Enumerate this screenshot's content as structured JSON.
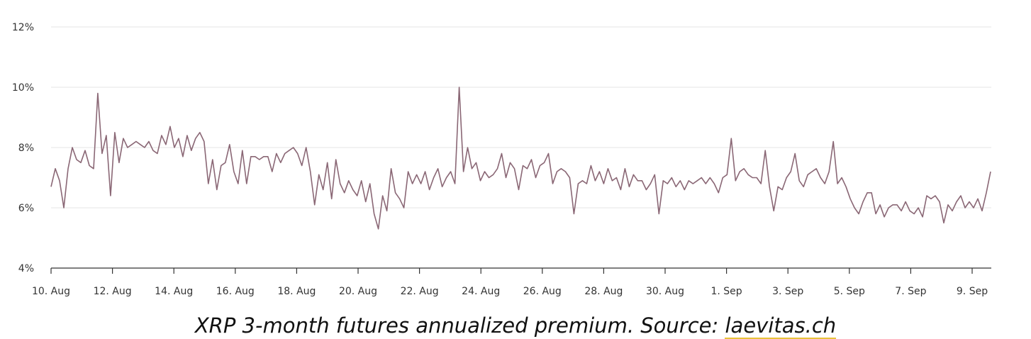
{
  "caption": {
    "text": "XRP 3-month futures annualized premium. Source: ",
    "link_text": "laevitas.ch"
  },
  "colors": {
    "line": "#8a6775",
    "grid": "#e6e6e6",
    "axis": "#333333",
    "link_underline": "#e8c23a"
  },
  "chart_data": {
    "type": "line",
    "title": "",
    "xlabel": "",
    "ylabel": "",
    "ylim": [
      4,
      12
    ],
    "y_ticks": [
      "4%",
      "6%",
      "8%",
      "10%",
      "12%"
    ],
    "y_tick_values": [
      4,
      6,
      8,
      10,
      12
    ],
    "x_tick_labels": [
      "10. Aug",
      "12. Aug",
      "14. Aug",
      "16. Aug",
      "18. Aug",
      "20. Aug",
      "22. Aug",
      "24. Aug",
      "26. Aug",
      "28. Aug",
      "30. Aug",
      "1. Sep",
      "3. Sep",
      "5. Sep",
      "7. Sep",
      "9. Sep"
    ],
    "x_range_days": [
      "10. Aug",
      "9. Sep"
    ],
    "grid": true,
    "series": [
      {
        "values_per_12h_from_10_Aug": [
          6.7,
          7.3,
          6.9,
          6.0,
          7.3,
          8.0,
          7.6,
          7.5,
          7.9,
          7.4,
          7.3,
          9.8,
          7.8,
          8.4,
          6.4,
          8.5,
          7.5,
          8.3,
          8.0,
          8.1,
          8.2,
          8.1,
          8.0,
          8.2,
          7.9,
          7.8,
          8.4,
          8.1,
          8.7,
          8.0,
          8.3,
          7.7,
          8.4,
          7.9,
          8.3,
          8.5,
          8.2,
          6.8,
          7.6,
          6.6,
          7.4,
          7.5,
          8.1,
          7.2,
          6.8,
          7.9,
          6.8,
          7.7,
          7.7,
          7.6,
          7.7,
          7.7,
          7.2,
          7.8,
          7.5,
          7.8,
          7.9,
          8.0,
          7.8,
          7.4,
          8.0,
          7.2,
          6.1,
          7.1,
          6.6,
          7.5,
          6.3,
          7.6,
          6.8,
          6.5,
          6.9,
          6.6,
          6.4,
          6.9,
          6.2,
          6.8,
          5.8,
          5.3,
          6.4,
          5.9,
          7.3,
          6.5,
          6.3,
          6.0,
          7.2,
          6.8,
          7.1,
          6.8,
          7.2,
          6.6,
          7.0,
          7.3,
          6.7,
          7.0,
          7.2,
          6.8,
          10.0,
          7.2,
          8.0,
          7.3,
          7.5,
          6.9,
          7.2,
          7.0,
          7.1,
          7.3,
          7.8,
          7.0,
          7.5,
          7.3,
          6.6,
          7.4,
          7.3,
          7.6,
          7.0,
          7.4,
          7.5,
          7.8,
          6.8,
          7.2,
          7.3,
          7.2,
          7.0,
          5.8,
          6.8,
          6.9,
          6.8,
          7.4,
          6.9,
          7.2,
          6.8,
          7.3,
          6.9,
          7.0,
          6.6,
          7.3,
          6.7,
          7.1,
          6.9,
          6.9,
          6.6,
          6.8,
          7.1,
          5.8,
          6.9,
          6.8,
          7.0,
          6.7,
          6.9,
          6.6,
          6.9,
          6.8,
          6.9,
          7.0,
          6.8,
          7.0,
          6.8,
          6.5,
          7.0,
          7.1,
          8.3,
          6.9,
          7.2,
          7.3,
          7.1,
          7.0,
          7.0,
          6.8,
          7.9,
          6.7,
          5.9,
          6.7,
          6.6,
          7.0,
          7.2,
          7.8,
          6.9,
          6.7,
          7.1,
          7.2,
          7.3,
          7.0,
          6.8,
          7.2,
          8.2,
          6.8,
          7.0,
          6.7,
          6.3,
          6.0,
          5.8,
          6.2,
          6.5,
          6.5,
          5.8,
          6.1,
          5.7,
          6.0,
          6.1,
          6.1,
          5.9,
          6.2,
          5.9,
          5.8,
          6.0,
          5.7,
          6.4,
          6.3,
          6.4,
          6.2,
          5.5,
          6.1,
          5.9,
          6.2,
          6.4,
          6.0,
          6.2,
          6.0,
          6.3,
          5.9,
          6.5,
          7.2
        ]
      }
    ]
  }
}
